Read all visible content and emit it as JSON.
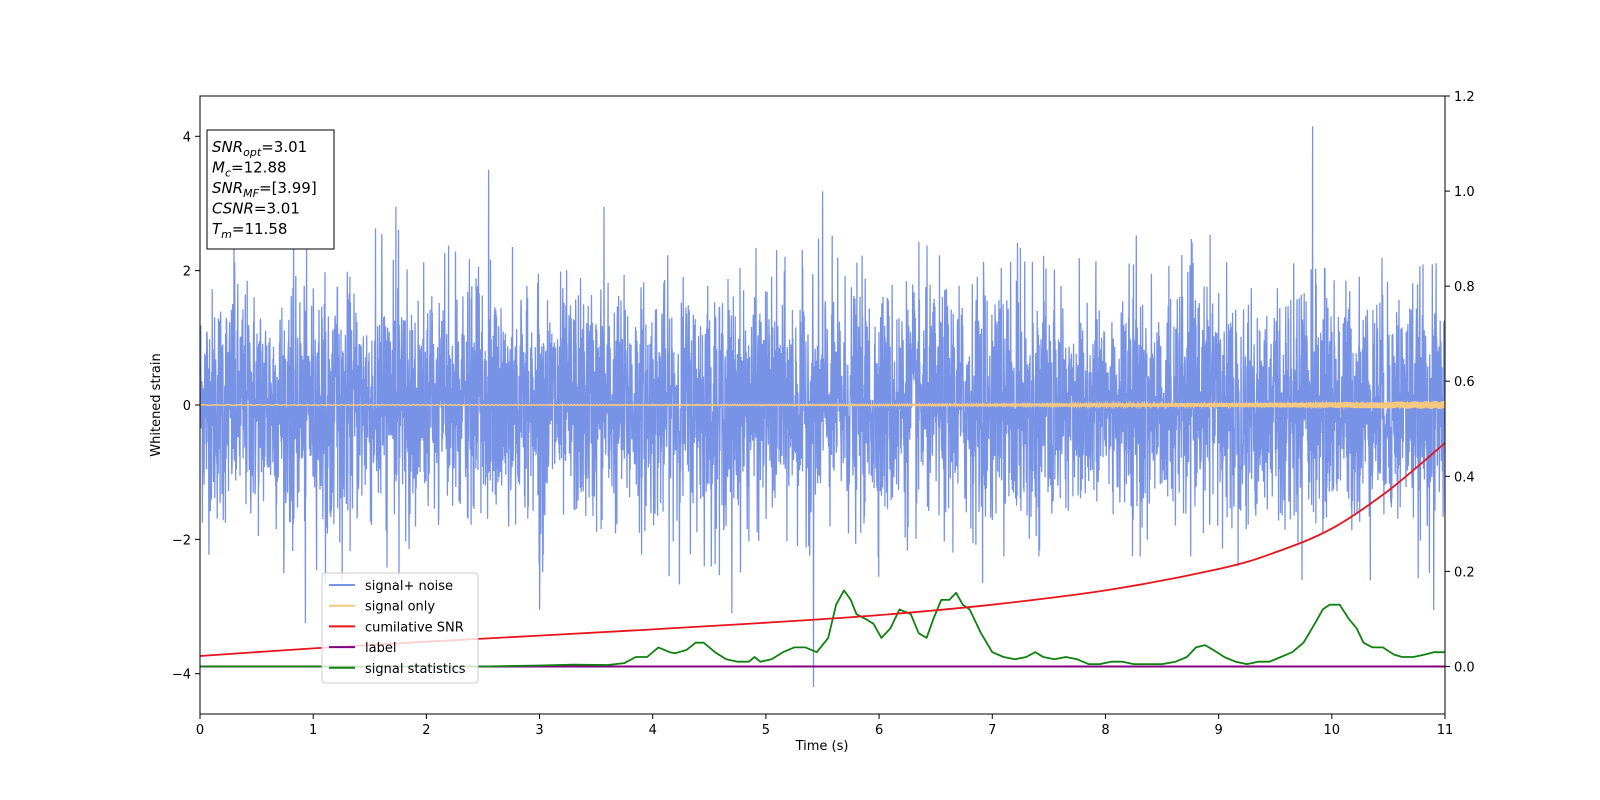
{
  "chart_data": {
    "type": "line",
    "xlabel": "Time (s)",
    "ylabel": "Whitened strain",
    "xlim": [
      0,
      11
    ],
    "ylim_left": [
      -4.6,
      4.6
    ],
    "ylim_right": [
      -0.1,
      1.2
    ],
    "x_ticks": [
      0,
      1,
      2,
      3,
      4,
      5,
      6,
      7,
      8,
      9,
      10,
      11
    ],
    "y_ticks_left": [
      -4,
      -2,
      0,
      2,
      4
    ],
    "y_ticks_left_labels": [
      "−4",
      "−2",
      "0",
      "2",
      "4"
    ],
    "y_ticks_right": [
      0.0,
      0.2,
      0.4,
      0.6,
      0.8,
      1.0,
      1.2
    ],
    "y_ticks_right_labels": [
      "0.0",
      "0.2",
      "0.4",
      "0.6",
      "0.8",
      "1.0",
      "1.2"
    ],
    "grid": false,
    "legend_position": "lower-left",
    "info_box": {
      "lines": [
        {
          "main": "SNR",
          "sub": "opt",
          "value": "=3.01"
        },
        {
          "main": "M",
          "sub": "c",
          "value": "=12.88"
        },
        {
          "main": "SNR",
          "sub": "MF",
          "value": "=[3.99]"
        },
        {
          "main": "CSNR",
          "sub": "",
          "value": "=3.01"
        },
        {
          "main": "T",
          "sub": "m",
          "value": "=11.58"
        }
      ]
    },
    "series": [
      {
        "name": "signal+ noise",
        "axis": "left",
        "color": "#7893e6",
        "kind": "noise",
        "approx_std": 0.85,
        "min": -4.2,
        "max": 4.15,
        "spikes": [
          {
            "x": 2.55,
            "y": 3.5
          },
          {
            "x": 5.42,
            "y": -4.2
          },
          {
            "x": 5.5,
            "y": 3.18
          },
          {
            "x": 9.83,
            "y": 4.15
          },
          {
            "x": 1.73,
            "y": 2.95
          },
          {
            "x": 3.57,
            "y": 2.95
          },
          {
            "x": 0.3,
            "y": 2.9
          },
          {
            "x": 0.93,
            "y": -3.25
          },
          {
            "x": 4.7,
            "y": -3.1
          },
          {
            "x": 3.0,
            "y": -3.05
          },
          {
            "x": 10.9,
            "y": -3.05
          }
        ]
      },
      {
        "name": "signal only",
        "axis": "left",
        "color": "#f5c880",
        "kind": "chirp",
        "amplitude_start": 0.005,
        "amplitude_end": 0.06
      },
      {
        "name": "cumilative SNR",
        "axis": "right",
        "color": "#e8141c",
        "x": [
          0,
          1,
          2,
          3,
          4,
          5,
          6,
          7,
          8,
          9,
          9.5,
          10,
          10.5,
          11
        ],
        "y": [
          0.022,
          0.038,
          0.052,
          0.065,
          0.078,
          0.092,
          0.108,
          0.13,
          0.16,
          0.205,
          0.24,
          0.29,
          0.37,
          0.47
        ]
      },
      {
        "name": "label",
        "axis": "right",
        "color": "#800080",
        "x": [
          0,
          11
        ],
        "y": [
          0.0,
          0.0
        ]
      },
      {
        "name": "signal statistics",
        "axis": "right",
        "color": "#108010",
        "x": [
          0,
          2.5,
          3.0,
          3.3,
          3.6,
          3.75,
          3.85,
          3.95,
          4.05,
          4.15,
          4.2,
          4.3,
          4.38,
          4.45,
          4.55,
          4.65,
          4.75,
          4.85,
          4.9,
          4.95,
          5.05,
          5.15,
          5.25,
          5.35,
          5.45,
          5.55,
          5.62,
          5.69,
          5.75,
          5.8,
          5.88,
          5.95,
          6.02,
          6.1,
          6.18,
          6.28,
          6.35,
          6.42,
          6.48,
          6.55,
          6.62,
          6.68,
          6.74,
          6.8,
          6.9,
          7.0,
          7.1,
          7.2,
          7.3,
          7.38,
          7.45,
          7.55,
          7.65,
          7.75,
          7.85,
          7.95,
          8.05,
          8.15,
          8.25,
          8.35,
          8.5,
          8.62,
          8.72,
          8.8,
          8.88,
          8.95,
          9.05,
          9.15,
          9.25,
          9.35,
          9.45,
          9.55,
          9.65,
          9.75,
          9.85,
          9.92,
          9.98,
          10.07,
          10.15,
          10.22,
          10.28,
          10.36,
          10.45,
          10.55,
          10.62,
          10.72,
          10.82,
          10.9,
          11.0
        ],
        "y": [
          0.0,
          0.0,
          0.002,
          0.004,
          0.003,
          0.007,
          0.02,
          0.02,
          0.04,
          0.03,
          0.028,
          0.035,
          0.05,
          0.05,
          0.03,
          0.015,
          0.01,
          0.01,
          0.02,
          0.01,
          0.015,
          0.03,
          0.04,
          0.04,
          0.03,
          0.06,
          0.13,
          0.16,
          0.14,
          0.11,
          0.1,
          0.09,
          0.06,
          0.08,
          0.12,
          0.11,
          0.07,
          0.06,
          0.1,
          0.14,
          0.14,
          0.155,
          0.13,
          0.12,
          0.07,
          0.03,
          0.02,
          0.015,
          0.02,
          0.03,
          0.02,
          0.015,
          0.02,
          0.015,
          0.005,
          0.005,
          0.01,
          0.01,
          0.005,
          0.005,
          0.005,
          0.01,
          0.02,
          0.04,
          0.045,
          0.035,
          0.02,
          0.01,
          0.005,
          0.01,
          0.01,
          0.02,
          0.03,
          0.05,
          0.09,
          0.12,
          0.13,
          0.13,
          0.1,
          0.08,
          0.05,
          0.04,
          0.04,
          0.025,
          0.02,
          0.02,
          0.025,
          0.03,
          0.03
        ]
      }
    ]
  }
}
